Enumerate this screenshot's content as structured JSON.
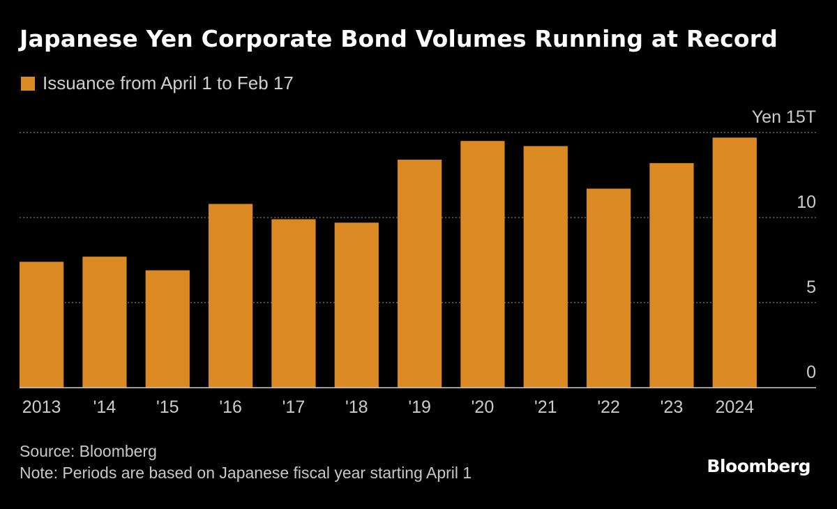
{
  "header": {
    "title": "Japanese Yen Corporate Bond Volumes Running at Record"
  },
  "legend": {
    "label": "Issuance from April 1 to Feb 17"
  },
  "footer": {
    "source": "Source: Bloomberg",
    "note": "Note: Periods are based on Japanese fiscal year starting April 1"
  },
  "brand": {
    "name": "Bloomberg"
  },
  "colors": {
    "bar": "#db8a23",
    "background": "#000000",
    "grid": "#7a7a7a",
    "text": "#ffffff",
    "axis_text": "#cccccc"
  },
  "chart_data": {
    "type": "bar",
    "title": "Japanese Yen Corporate Bond Volumes Running at Record",
    "categories": [
      "2013",
      "'14",
      "'15",
      "'16",
      "'17",
      "'18",
      "'19",
      "'20",
      "'21",
      "'22",
      "'23",
      "2024"
    ],
    "series": [
      {
        "name": "Issuance from April 1 to Feb 17",
        "values": [
          7.4,
          7.7,
          6.9,
          10.8,
          9.9,
          9.7,
          13.4,
          14.5,
          14.2,
          11.7,
          13.2,
          14.7
        ]
      }
    ],
    "xlabel": "",
    "ylabel": "",
    "unit_label": "Yen 15T",
    "ylim": [
      0,
      15
    ],
    "yticks": [
      0,
      5,
      10,
      15
    ],
    "ytick_labels": [
      "0",
      "5",
      "10",
      "Yen 15T"
    ],
    "grid": true,
    "legend_position": "top-left"
  }
}
